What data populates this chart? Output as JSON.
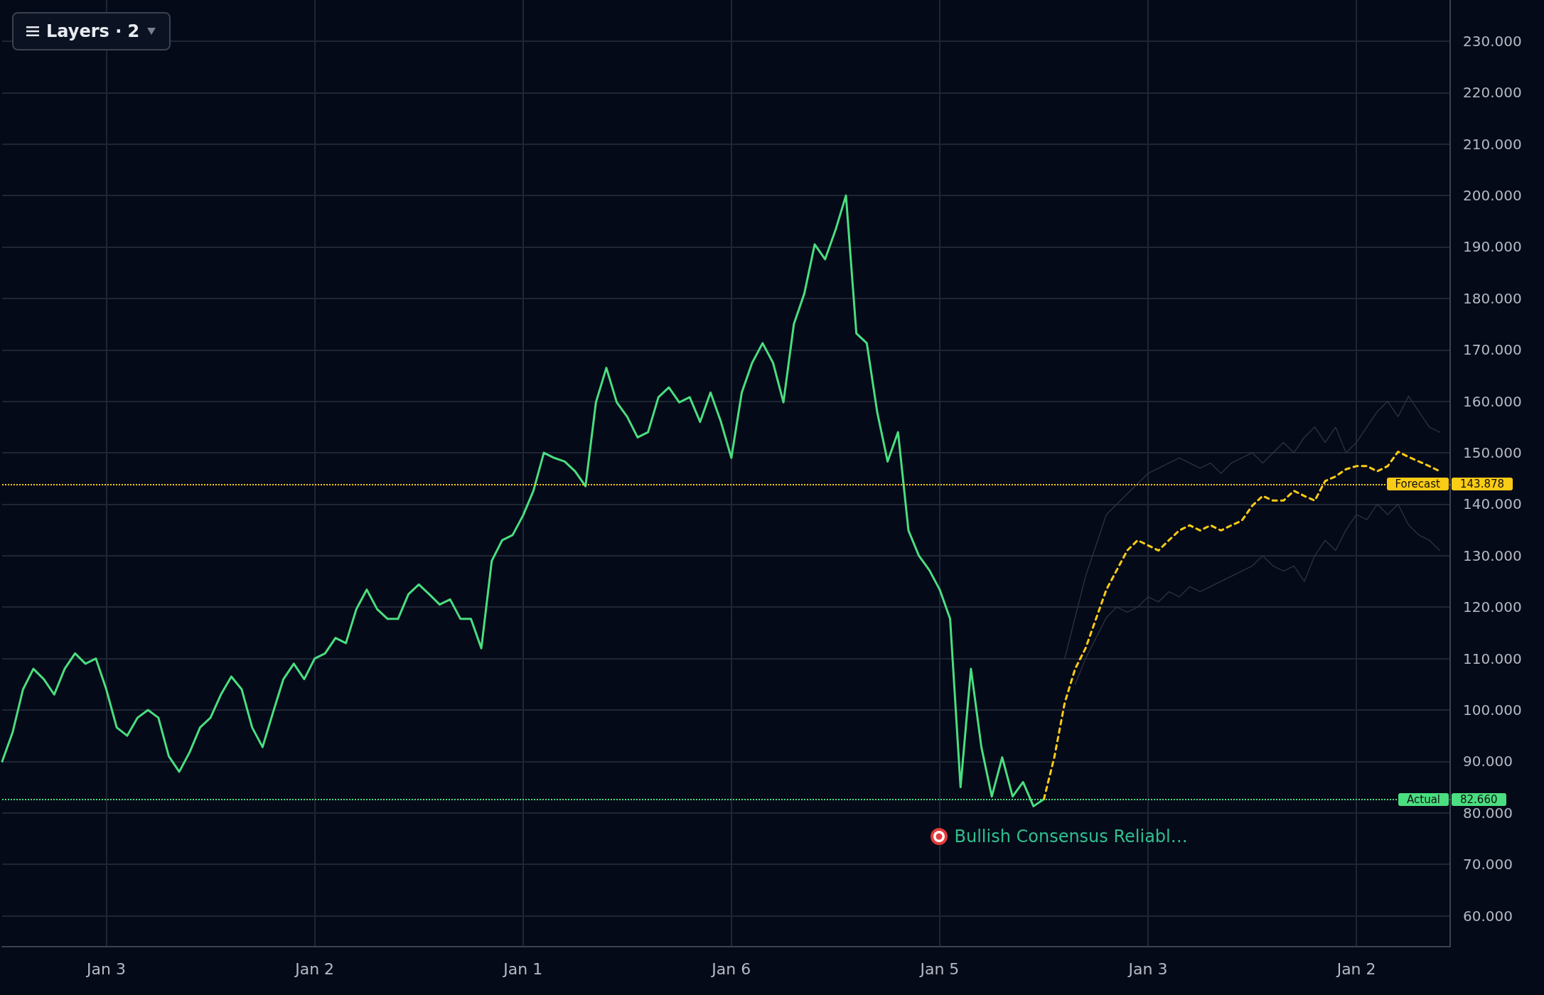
{
  "chart_data": {
    "type": "line",
    "categories": [
      null,
      null,
      null,
      null,
      null,
      null,
      null,
      null,
      null,
      null,
      "Jan 3",
      null,
      null,
      null,
      null,
      null,
      null,
      null,
      null,
      null,
      null,
      null,
      null,
      null,
      null,
      null,
      null,
      null,
      null,
      null,
      "Jan 2",
      null,
      null,
      null,
      null,
      null,
      null,
      null,
      null,
      null,
      null,
      null,
      null,
      null,
      null,
      null,
      null,
      null,
      null,
      null,
      "Jan 1",
      null,
      null,
      null,
      null,
      null,
      null,
      null,
      null,
      null,
      null,
      null,
      null,
      null,
      null,
      null,
      null,
      null,
      null,
      null,
      "Jan 6",
      null,
      null,
      null,
      null,
      null,
      null,
      null,
      null,
      null,
      null,
      null,
      null,
      null,
      null,
      null,
      null,
      null,
      null,
      null,
      "Jan 5",
      null,
      null,
      null,
      null,
      null,
      null,
      null,
      null,
      null,
      null,
      null,
      null,
      null,
      null,
      null,
      null,
      null,
      null,
      null,
      "Jan 3",
      null,
      null,
      null,
      null,
      null,
      null,
      null,
      null,
      null,
      null,
      null,
      null,
      null,
      null,
      null,
      null,
      null,
      null,
      null,
      "Jan 2",
      null,
      null,
      null,
      null,
      null,
      null,
      null,
      null,
      null
    ],
    "series": [
      {
        "color": "#4ade80",
        "line_style": "solid",
        "values": [
          90,
          95.6,
          104,
          108,
          106,
          103,
          108,
          111,
          109,
          110,
          104,
          96.6,
          95,
          98.5,
          100,
          98.5,
          91,
          88,
          91.8,
          96.6,
          98.5,
          103,
          106.5,
          104,
          96.6,
          92.8,
          99.5,
          106,
          109,
          106,
          110,
          111,
          114,
          113,
          119.6,
          123.4,
          119.6,
          117.7,
          117.7,
          122.5,
          124.4,
          122.5,
          120.5,
          121.5,
          117.7,
          117.7,
          112,
          129,
          133,
          134,
          137.8,
          142.6,
          150,
          149,
          148.3,
          146.4,
          143.5,
          159.8,
          166.5,
          159.8,
          157,
          153,
          154,
          160.8,
          162.7,
          159.8,
          160.8,
          156,
          161.7,
          156,
          149,
          161.7,
          167.5,
          171.3,
          167.5,
          159.8,
          175,
          180.9,
          190.5,
          187.6,
          193.3,
          200,
          173.2,
          171.3,
          157.9,
          148.3,
          154,
          134.9,
          130,
          127.2,
          123.4,
          117.7,
          85,
          108,
          92.8,
          83.2,
          90.8,
          83.2,
          86,
          81.3,
          82.66,
          null,
          null,
          null,
          null,
          null,
          null,
          null,
          null,
          null,
          null,
          null,
          null,
          null,
          null,
          null,
          null,
          null,
          null,
          null,
          null,
          null,
          null,
          null,
          null,
          null,
          null,
          null,
          null,
          null,
          null,
          null,
          null,
          null,
          null,
          null,
          null,
          null,
          null,
          null
        ]
      },
      {
        "color": "#2e333d",
        "line_style": "dotted",
        "values": [
          null,
          null,
          null,
          null,
          null,
          null,
          null,
          null,
          null,
          null,
          null,
          null,
          null,
          null,
          null,
          null,
          null,
          null,
          null,
          null,
          null,
          null,
          null,
          null,
          null,
          null,
          null,
          null,
          null,
          null,
          null,
          null,
          null,
          null,
          null,
          null,
          null,
          null,
          null,
          null,
          null,
          null,
          null,
          null,
          null,
          null,
          null,
          null,
          null,
          null,
          null,
          null,
          null,
          null,
          null,
          null,
          null,
          null,
          null,
          null,
          null,
          null,
          null,
          null,
          null,
          null,
          null,
          null,
          null,
          null,
          null,
          null,
          null,
          null,
          null,
          null,
          null,
          null,
          null,
          null,
          null,
          null,
          null,
          null,
          null,
          null,
          null,
          null,
          null,
          null,
          null,
          null,
          null,
          null,
          null,
          null,
          null,
          null,
          null,
          null,
          null,
          null,
          110,
          118,
          126,
          132,
          138,
          140,
          142,
          144,
          146,
          147,
          148,
          149,
          148,
          147,
          148,
          146,
          148,
          149,
          150,
          148,
          150,
          152,
          150,
          153,
          155,
          152,
          155,
          150,
          152,
          155,
          158,
          160,
          157,
          161,
          158,
          155,
          154,
          null
        ]
      },
      {
        "color": "#2e333d",
        "line_style": "dotted",
        "values": [
          null,
          null,
          null,
          null,
          null,
          null,
          null,
          null,
          null,
          null,
          null,
          null,
          null,
          null,
          null,
          null,
          null,
          null,
          null,
          null,
          null,
          null,
          null,
          null,
          null,
          null,
          null,
          null,
          null,
          null,
          null,
          null,
          null,
          null,
          null,
          null,
          null,
          null,
          null,
          null,
          null,
          null,
          null,
          null,
          null,
          null,
          null,
          null,
          null,
          null,
          null,
          null,
          null,
          null,
          null,
          null,
          null,
          null,
          null,
          null,
          null,
          null,
          null,
          null,
          null,
          null,
          null,
          null,
          null,
          null,
          null,
          null,
          null,
          null,
          null,
          null,
          null,
          null,
          null,
          null,
          null,
          null,
          null,
          null,
          null,
          null,
          null,
          null,
          null,
          null,
          null,
          null,
          null,
          null,
          null,
          null,
          null,
          null,
          null,
          null,
          null,
          null,
          null,
          105,
          110,
          114,
          118,
          120,
          119,
          120,
          122,
          121,
          123,
          122,
          124,
          123,
          124,
          125,
          126,
          127,
          128,
          130,
          128,
          127,
          128,
          125,
          130,
          133,
          131,
          135,
          138,
          137,
          140,
          138,
          140,
          136,
          134,
          133,
          131,
          null
        ]
      },
      {
        "color": "#facc15",
        "line_style": "dashed",
        "values": [
          null,
          null,
          null,
          null,
          null,
          null,
          null,
          null,
          null,
          null,
          null,
          null,
          null,
          null,
          null,
          null,
          null,
          null,
          null,
          null,
          null,
          null,
          null,
          null,
          null,
          null,
          null,
          null,
          null,
          null,
          null,
          null,
          null,
          null,
          null,
          null,
          null,
          null,
          null,
          null,
          null,
          null,
          null,
          null,
          null,
          null,
          null,
          null,
          null,
          null,
          null,
          null,
          null,
          null,
          null,
          null,
          null,
          null,
          null,
          null,
          null,
          null,
          null,
          null,
          null,
          null,
          null,
          null,
          null,
          null,
          null,
          null,
          null,
          null,
          null,
          null,
          null,
          null,
          null,
          null,
          null,
          null,
          null,
          null,
          null,
          null,
          null,
          null,
          null,
          null,
          null,
          null,
          null,
          null,
          null,
          null,
          null,
          null,
          null,
          null,
          82.66,
          90.8,
          101.4,
          108,
          112,
          117.7,
          123.4,
          127.2,
          131,
          133,
          132,
          131,
          133,
          134.9,
          135.9,
          134.9,
          135.9,
          134.9,
          135.9,
          136.8,
          139.7,
          141.6,
          140.7,
          140.7,
          142.6,
          141.6,
          140.7,
          144.5,
          145.4,
          146.8,
          147.4,
          147.4,
          146.4,
          147.4,
          150.2,
          149.2,
          148.3,
          147.4,
          146.4,
          null
        ]
      }
    ],
    "ylim": [
      54,
      238
    ],
    "yticks": [
      {
        "value": 60,
        "label": "60.000"
      },
      {
        "value": 70,
        "label": "70.000"
      },
      {
        "value": 80,
        "label": "80.000"
      },
      {
        "value": 90,
        "label": "90.000"
      },
      {
        "value": 100,
        "label": "100.000"
      },
      {
        "value": 110,
        "label": "110.000"
      },
      {
        "value": 120,
        "label": "120.000"
      },
      {
        "value": 130,
        "label": "130.000"
      },
      {
        "value": 140,
        "label": "140.000"
      },
      {
        "value": 150,
        "label": "150.000"
      },
      {
        "value": 160,
        "label": "160.000"
      },
      {
        "value": 170,
        "label": "170.000"
      },
      {
        "value": 180,
        "label": "180.000"
      },
      {
        "value": 190,
        "label": "190.000"
      },
      {
        "value": 200,
        "label": "200.000"
      },
      {
        "value": 210,
        "label": "210.000"
      },
      {
        "value": 220,
        "label": "220.000"
      },
      {
        "value": 230,
        "label": "230.000"
      }
    ],
    "ref_lines": [
      {
        "axis": "y",
        "value": 143.878,
        "label": "Forecast",
        "color": "#facc15",
        "line_style": "dotted"
      },
      {
        "axis": "y",
        "value": 82.66,
        "label": "Actual",
        "color": "#4ade80",
        "line_style": "dotted"
      }
    ],
    "annotations": [
      "Layers · 2",
      "Bullish Consensus Reliabl…",
      "143.878",
      "82.660"
    ],
    "grid": true,
    "marker": "none"
  }
}
